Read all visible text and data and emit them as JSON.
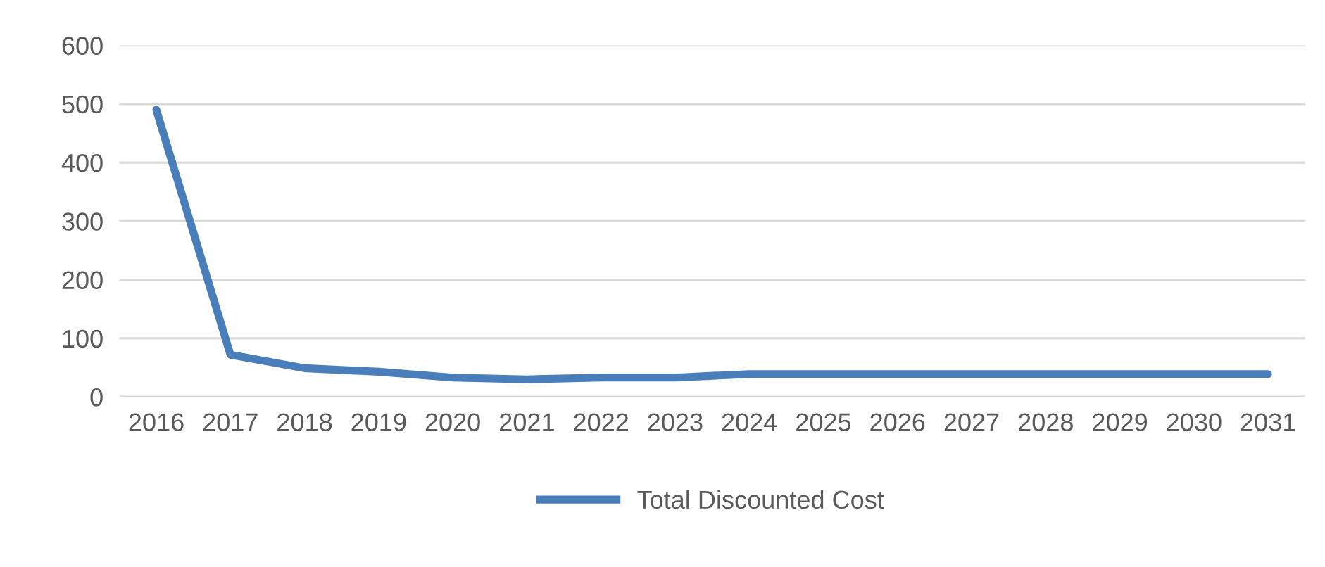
{
  "chart_data": {
    "type": "line",
    "categories": [
      "2016",
      "2017",
      "2018",
      "2019",
      "2020",
      "2021",
      "2022",
      "2023",
      "2024",
      "2025",
      "2026",
      "2027",
      "2028",
      "2029",
      "2030",
      "2031"
    ],
    "series": [
      {
        "name": "Total Discounted Cost",
        "color": "#4a7ebb",
        "values": [
          490,
          72,
          49,
          43,
          33,
          30,
          33,
          33,
          39,
          39,
          39,
          39,
          39,
          39,
          39,
          39
        ]
      }
    ],
    "ylim": [
      0,
      600
    ],
    "yticks": [
      0,
      100,
      200,
      300,
      400,
      500,
      600
    ],
    "grid": "y",
    "legend": "bottom",
    "marker": "none",
    "line_style": "solid"
  }
}
